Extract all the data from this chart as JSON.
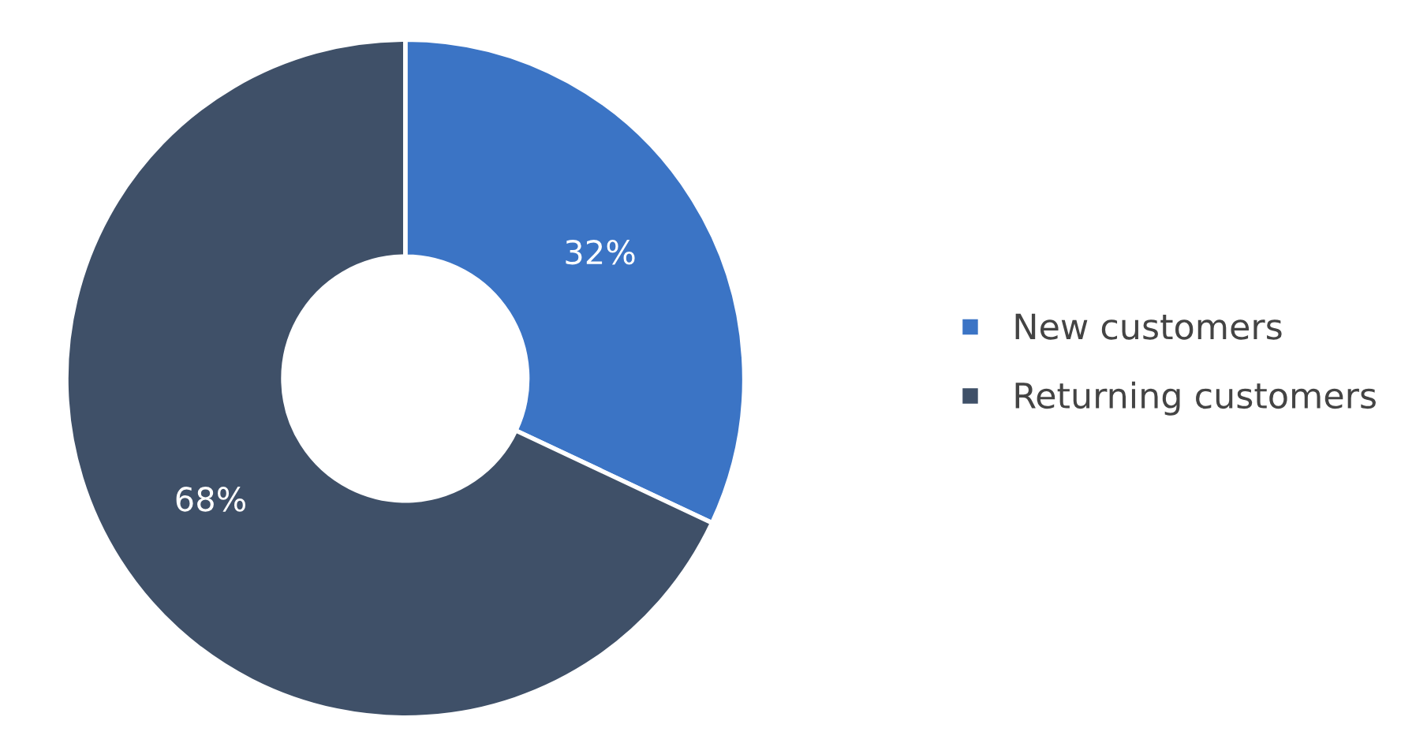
{
  "chart_data": {
    "type": "donut",
    "categories": [
      "New customers",
      "Returning customers"
    ],
    "values": [
      32,
      68
    ],
    "colors": [
      "#3b74c5",
      "#3f5068"
    ],
    "value_labels": [
      "32%",
      "68%"
    ],
    "legend": "right"
  }
}
